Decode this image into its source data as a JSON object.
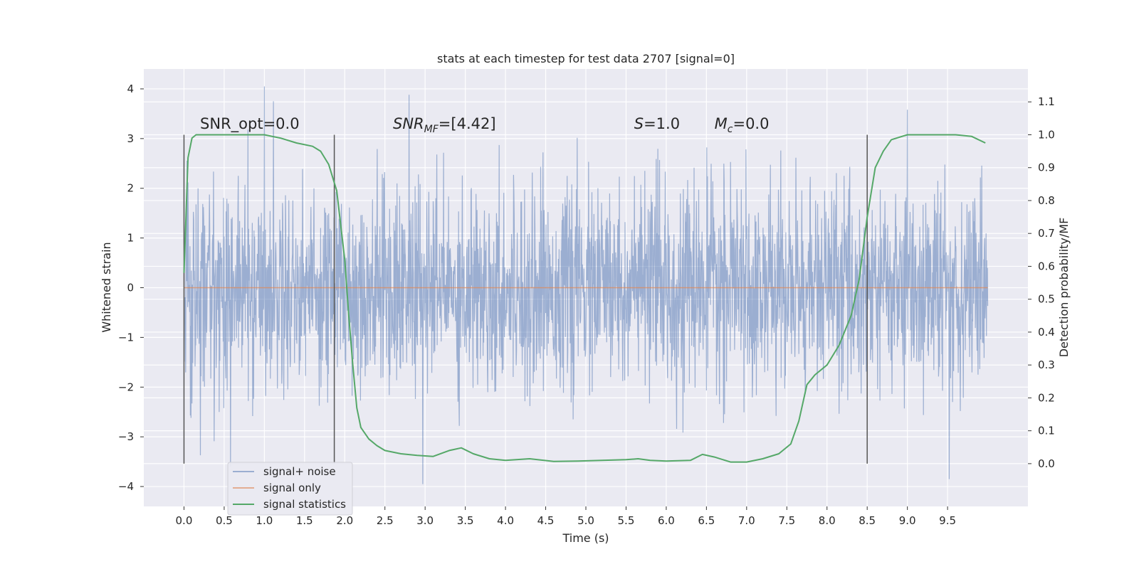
{
  "chart_data": {
    "type": "line",
    "title": "stats at each timestep for test data 2707 [signal=0]",
    "xlabel": "Time (s)",
    "ylabel": "Whitened strain",
    "y2label": "Detection probability/MF",
    "xlim": [
      -0.5,
      10.5
    ],
    "ylim": [
      -4.4,
      4.4
    ],
    "y2lim": [
      -0.13,
      1.2
    ],
    "x_ticks": [
      0.0,
      0.5,
      1.0,
      1.5,
      2.0,
      2.5,
      3.0,
      3.5,
      4.0,
      4.5,
      5.0,
      5.5,
      6.0,
      6.5,
      7.0,
      7.5,
      8.0,
      8.5,
      9.0,
      9.5
    ],
    "x_tick_labels": [
      "0.0",
      "0.5",
      "1.0",
      "1.5",
      "2.0",
      "2.5",
      "3.0",
      "3.5",
      "4.0",
      "4.5",
      "5.0",
      "5.5",
      "6.0",
      "6.5",
      "7.0",
      "7.5",
      "8.0",
      "8.5",
      "9.0",
      "9.5"
    ],
    "y_ticks": [
      4,
      3,
      2,
      1,
      0,
      -1,
      -2,
      -3,
      -4
    ],
    "y_tick_labels": [
      "4",
      "3",
      "2",
      "1",
      "0",
      "−1",
      "−2",
      "−3",
      "−4"
    ],
    "y2_ticks": [
      1.1,
      1.0,
      0.9,
      0.8,
      0.7,
      0.6,
      0.5,
      0.4,
      0.3,
      0.2,
      0.1,
      0.0
    ],
    "y2_tick_labels": [
      "1.1",
      "1.0",
      "0.9",
      "0.8",
      "0.7",
      "0.6",
      "0.5",
      "0.4",
      "0.3",
      "0.2",
      "0.1",
      "0.0"
    ],
    "grid": true,
    "legend_position": "lower-left",
    "series": [
      {
        "name": "signal+ noise",
        "color": "#4c72b0",
        "description_values": {
          "x_range": [
            0.0,
            10.0
          ],
          "typical_band": [
            -1.3,
            1.3
          ],
          "max": 4.05,
          "min": -3.95,
          "notable_peaks": [
            {
              "x": 1.0,
              "y": 4.05
            },
            {
              "x": 2.8,
              "y": 3.88
            },
            {
              "x": 2.97,
              "y": -3.95
            },
            {
              "x": 9.0,
              "y": 3.58
            },
            {
              "x": 0.58,
              "y": -3.6
            },
            {
              "x": 9.52,
              "y": -3.85
            }
          ]
        }
      },
      {
        "name": "signal only",
        "color": "#dd8452",
        "x": [
          0.0,
          10.0
        ],
        "y": [
          0.0,
          0.0
        ]
      },
      {
        "name": "signal statistics",
        "color": "#55a868",
        "axis": "right",
        "x": [
          0.0,
          0.05,
          0.1,
          0.15,
          0.25,
          0.4,
          0.6,
          0.8,
          1.0,
          1.2,
          1.4,
          1.6,
          1.7,
          1.8,
          1.9,
          2.0,
          2.05,
          2.1,
          2.15,
          2.2,
          2.3,
          2.4,
          2.5,
          2.7,
          2.9,
          3.1,
          3.3,
          3.45,
          3.6,
          3.8,
          4.0,
          4.3,
          4.6,
          4.9,
          5.2,
          5.5,
          5.65,
          5.8,
          6.0,
          6.3,
          6.45,
          6.6,
          6.8,
          7.0,
          7.2,
          7.4,
          7.55,
          7.65,
          7.75,
          7.85,
          8.0,
          8.15,
          8.3,
          8.4,
          8.5,
          8.6,
          8.7,
          8.8,
          9.0,
          9.3,
          9.6,
          9.8,
          9.97
        ],
        "y": [
          0.58,
          0.93,
          0.99,
          1.0,
          1.0,
          1.0,
          1.0,
          1.0,
          1.0,
          0.99,
          0.975,
          0.965,
          0.95,
          0.91,
          0.83,
          0.62,
          0.45,
          0.3,
          0.17,
          0.11,
          0.075,
          0.055,
          0.04,
          0.03,
          0.025,
          0.022,
          0.04,
          0.048,
          0.03,
          0.015,
          0.01,
          0.015,
          0.007,
          0.008,
          0.01,
          0.012,
          0.015,
          0.01,
          0.008,
          0.01,
          0.028,
          0.02,
          0.005,
          0.005,
          0.015,
          0.03,
          0.06,
          0.13,
          0.24,
          0.27,
          0.3,
          0.36,
          0.45,
          0.56,
          0.75,
          0.9,
          0.95,
          0.985,
          1.0,
          1.0,
          1.0,
          0.995,
          0.975
        ]
      }
    ],
    "vertical_lines_x": [
      0.0,
      1.87,
      8.5
    ],
    "annotations": [
      {
        "text": "SNR_opt=0.0",
        "x": 0.2,
        "y": 3.3
      },
      {
        "text": "SNR",
        "sub": "MF",
        "suffix": "=[4.42]",
        "x": 2.6,
        "y": 3.3
      },
      {
        "text": "S",
        "suffix": "=1.0",
        "x": 5.6,
        "y": 3.3
      },
      {
        "text": "M",
        "sub": "c",
        "suffix": "=0.0",
        "x": 6.6,
        "y": 3.3
      }
    ]
  },
  "colors": {
    "plot_background": "#eaeaf2",
    "grid": "#ffffff",
    "vertical_lines": "#555555",
    "noise": "#4c72b0",
    "signal": "#dd8452",
    "stats": "#55a868"
  },
  "legend": {
    "items": [
      "signal+ noise",
      "signal only",
      "signal statistics"
    ]
  }
}
